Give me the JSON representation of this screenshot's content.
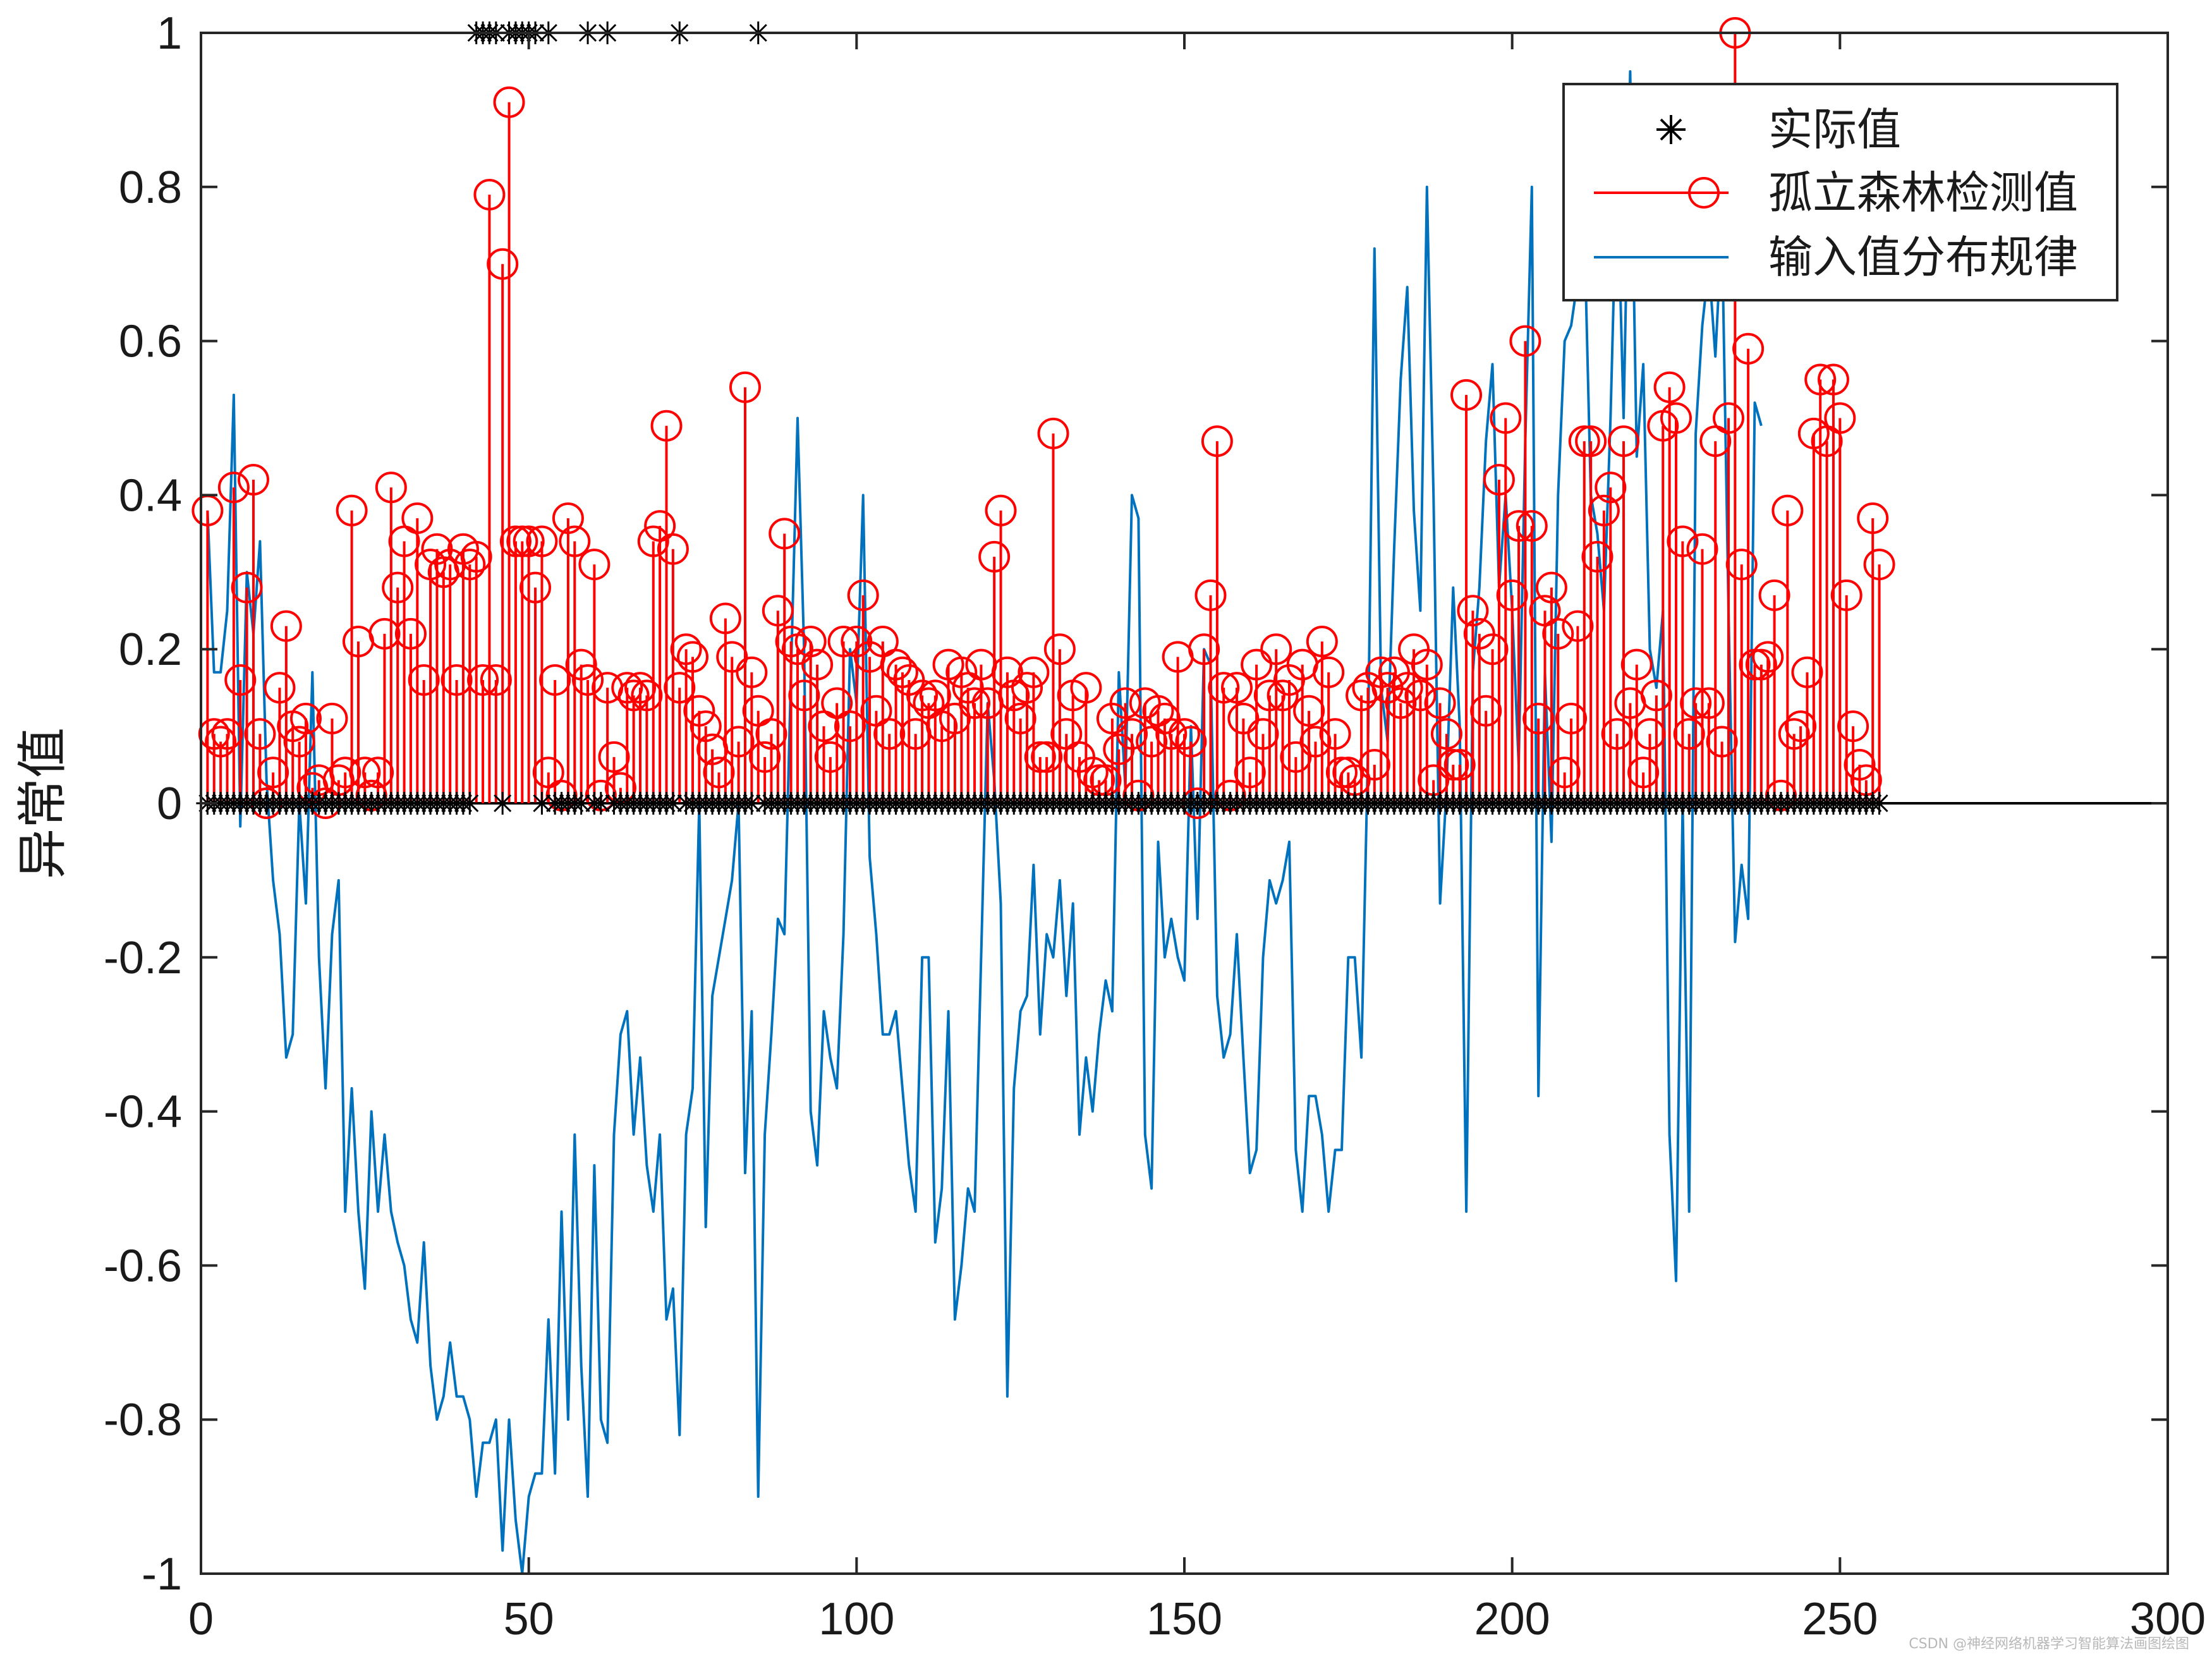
{
  "chart_data": {
    "type": "line",
    "title": "",
    "xlabel": "",
    "ylabel": "异常值",
    "xlim": [
      0,
      300
    ],
    "ylim": [
      -1,
      1
    ],
    "xticks": [
      0,
      50,
      100,
      150,
      200,
      250,
      300
    ],
    "yticks": [
      -1,
      -0.8,
      -0.6,
      -0.4,
      -0.2,
      0,
      0.2,
      0.4,
      0.6,
      0.8,
      1
    ],
    "grid": false,
    "legend_position": "top-right",
    "series": [
      {
        "name": "实际值",
        "kind": "marker-asterisk",
        "color": "#000000",
        "anomaly_indices": [
          42,
          43,
          44,
          45,
          47,
          48,
          49,
          50,
          51,
          53,
          59,
          62,
          73,
          85
        ]
      },
      {
        "name": "孤立森林检测值",
        "kind": "stem-circle",
        "color": "#ff0000",
        "values": [
          0.38,
          0.09,
          0.08,
          0.09,
          0.41,
          0.16,
          0.28,
          0.42,
          0.09,
          0.0,
          0.04,
          0.15,
          0.23,
          0.1,
          0.08,
          0.11,
          0.02,
          0.03,
          0.0,
          0.11,
          0.03,
          0.04,
          0.38,
          0.21,
          0.04,
          0.01,
          0.04,
          0.22,
          0.41,
          0.28,
          0.34,
          0.22,
          0.37,
          0.16,
          0.31,
          0.33,
          0.3,
          0.31,
          0.16,
          0.33,
          0.31,
          0.32,
          0.16,
          0.79,
          0.16,
          0.7,
          0.91,
          0.34,
          0.34,
          0.34,
          0.28,
          0.34,
          0.04,
          0.16,
          0.01,
          0.37,
          0.34,
          0.18,
          0.16,
          0.31,
          0.01,
          0.15,
          0.06,
          0.02,
          0.15,
          0.14,
          0.15,
          0.14,
          0.34,
          0.36,
          0.49,
          0.33,
          0.15,
          0.2,
          0.19,
          0.12,
          0.1,
          0.07,
          0.04,
          0.24,
          0.19,
          0.08,
          0.54,
          0.17,
          0.12,
          0.06,
          0.09,
          0.25,
          0.35,
          0.21,
          0.2,
          0.14,
          0.21,
          0.18,
          0.1,
          0.06,
          0.13,
          0.21,
          0.1,
          0.21,
          0.27,
          0.19,
          0.12,
          0.21,
          0.09,
          0.18,
          0.17,
          0.16,
          0.09,
          0.14,
          0.13,
          0.14,
          0.1,
          0.18,
          0.11,
          0.17,
          0.15,
          0.13,
          0.18,
          0.13,
          0.32,
          0.38,
          0.17,
          0.14,
          0.11,
          0.15,
          0.17,
          0.06,
          0.06,
          0.48,
          0.2,
          0.09,
          0.14,
          0.06,
          0.15,
          0.04,
          0.03,
          0.03,
          0.11,
          0.07,
          0.13,
          0.09,
          0.01,
          0.13,
          0.08,
          0.12,
          0.11,
          0.09,
          0.19,
          0.09,
          0.08,
          0.0,
          0.2,
          0.27,
          0.47,
          0.15,
          0.01,
          0.15,
          0.11,
          0.04,
          0.18,
          0.09,
          0.14,
          0.2,
          0.14,
          0.16,
          0.06,
          0.18,
          0.12,
          0.08,
          0.21,
          0.17,
          0.09,
          0.04,
          0.04,
          0.03,
          0.14,
          0.15,
          0.05,
          0.17,
          0.15,
          0.17,
          0.13,
          0.15,
          0.2,
          0.14,
          0.18,
          0.03,
          0.13,
          0.09,
          0.05,
          0.05,
          0.53,
          0.25,
          0.22,
          0.12,
          0.2,
          0.42,
          0.5,
          0.27,
          0.36,
          0.6,
          0.36,
          0.11,
          0.25,
          0.28,
          0.22,
          0.04,
          0.11,
          0.23,
          0.47,
          0.47,
          0.32,
          0.38,
          0.41,
          0.09,
          0.47,
          0.13,
          0.18,
          0.04,
          0.09,
          0.14,
          0.49,
          0.54,
          0.5,
          0.34,
          0.09,
          0.13,
          0.33,
          0.13,
          0.47,
          0.08,
          0.5,
          1.0,
          0.31,
          0.59,
          0.18,
          0.18,
          0.19,
          0.27,
          0.01,
          0.38,
          0.09,
          0.1,
          0.17,
          0.48,
          0.55,
          0.47,
          0.55,
          0.5,
          0.27,
          0.1,
          0.05,
          0.03,
          0.37,
          0.31
        ]
      },
      {
        "name": "输入值分布规律",
        "kind": "line",
        "color": "#0072bd",
        "values": [
          0.38,
          0.17,
          0.17,
          0.25,
          0.53,
          -0.03,
          0.3,
          0.22,
          0.34,
          0.03,
          -0.1,
          -0.17,
          -0.33,
          -0.3,
          0.0,
          -0.13,
          0.17,
          -0.2,
          -0.37,
          -0.17,
          -0.1,
          -0.53,
          -0.37,
          -0.53,
          -0.63,
          -0.4,
          -0.53,
          -0.43,
          -0.53,
          -0.57,
          -0.6,
          -0.67,
          -0.7,
          -0.57,
          -0.73,
          -0.8,
          -0.77,
          -0.7,
          -0.77,
          -0.77,
          -0.8,
          -0.9,
          -0.83,
          -0.83,
          -0.8,
          -0.97,
          -0.8,
          -0.93,
          -1.0,
          -0.9,
          -0.87,
          -0.87,
          -0.67,
          -0.87,
          -0.53,
          -0.8,
          -0.43,
          -0.73,
          -0.9,
          -0.47,
          -0.8,
          -0.83,
          -0.43,
          -0.3,
          -0.27,
          -0.43,
          -0.33,
          -0.47,
          -0.53,
          -0.43,
          -0.67,
          -0.63,
          -0.82,
          -0.43,
          -0.37,
          0.0,
          -0.55,
          -0.25,
          -0.2,
          -0.15,
          -0.1,
          0.0,
          -0.48,
          -0.27,
          -0.9,
          -0.43,
          -0.3,
          -0.15,
          -0.17,
          0.17,
          0.5,
          0.2,
          -0.4,
          -0.47,
          -0.27,
          -0.33,
          -0.37,
          -0.17,
          0.2,
          0.13,
          0.4,
          -0.07,
          -0.17,
          -0.3,
          -0.3,
          -0.27,
          -0.37,
          -0.47,
          -0.53,
          -0.2,
          -0.2,
          -0.57,
          -0.5,
          -0.27,
          -0.67,
          -0.6,
          -0.5,
          -0.53,
          -0.2,
          0.13,
          0.03,
          -0.13,
          -0.77,
          -0.37,
          -0.27,
          -0.25,
          -0.08,
          -0.3,
          -0.17,
          -0.2,
          -0.1,
          -0.25,
          -0.13,
          -0.43,
          -0.33,
          -0.4,
          -0.3,
          -0.23,
          -0.27,
          0.17,
          0.02,
          0.4,
          0.37,
          -0.43,
          -0.5,
          -0.05,
          -0.2,
          -0.15,
          -0.2,
          -0.23,
          0.1,
          -0.15,
          0.2,
          0.18,
          -0.25,
          -0.33,
          -0.3,
          -0.17,
          -0.33,
          -0.48,
          -0.45,
          -0.2,
          -0.1,
          -0.13,
          -0.1,
          -0.05,
          -0.45,
          -0.53,
          -0.38,
          -0.38,
          -0.43,
          -0.53,
          -0.45,
          -0.45,
          -0.2,
          -0.2,
          -0.33,
          0.07,
          0.72,
          0.15,
          0.08,
          0.33,
          0.55,
          0.67,
          0.38,
          0.25,
          0.8,
          0.4,
          -0.13,
          0.02,
          0.28,
          0.1,
          -0.53,
          0.17,
          0.28,
          0.47,
          0.57,
          0.28,
          0.4,
          0.25,
          0.05,
          0.47,
          0.8,
          -0.38,
          0.17,
          -0.05,
          0.4,
          0.6,
          0.62,
          0.68,
          0.75,
          0.4,
          0.35,
          0.25,
          0.5,
          0.83,
          0.5,
          0.95,
          0.45,
          0.57,
          0.2,
          0.15,
          0.25,
          -0.43,
          -0.62,
          0.0,
          -0.53,
          0.48,
          0.62,
          0.7,
          0.58,
          0.75,
          0.25,
          -0.18,
          -0.08,
          -0.15,
          0.52,
          0.49
        ]
      }
    ]
  },
  "watermark": "CSDN @神经网络机器学习智能算法画图绘图"
}
